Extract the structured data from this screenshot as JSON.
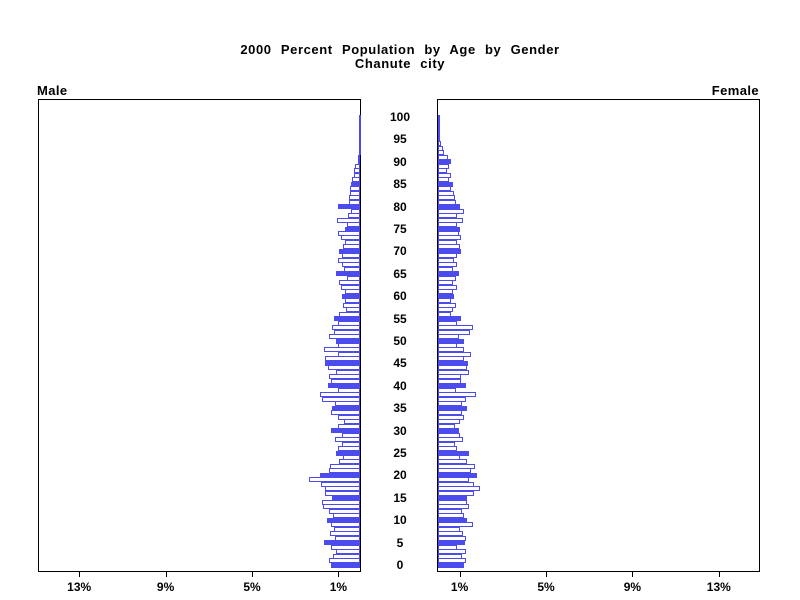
{
  "title": {
    "line1": "2000 Percent Population by Age by Gender",
    "line2": "Chanute city"
  },
  "panels": {
    "left_header": "Male",
    "right_header": "Female"
  },
  "axes": {
    "age_tick_labels": [
      "0",
      "5",
      "10",
      "15",
      "20",
      "25",
      "30",
      "35",
      "40",
      "45",
      "50",
      "55",
      "60",
      "65",
      "70",
      "75",
      "80",
      "85",
      "90",
      "95",
      "100"
    ],
    "pct_tick_labels": [
      "1%",
      "5%",
      "9%",
      "13%"
    ],
    "pct_tick_values": [
      1,
      5,
      9,
      13
    ],
    "pct_axis_range": [
      0,
      15
    ],
    "age_axis_range": [
      0,
      100
    ]
  },
  "colors": {
    "bar_blue": "#4b4bee",
    "bar_outline_fill": "#ffffff",
    "frame": "#000000",
    "text": "#000000",
    "background": "#ffffff"
  },
  "chart_data": {
    "type": "bar",
    "subtype": "population-pyramid",
    "title": "2000 Percent Population by Age by Gender",
    "subtitle": "Chanute city",
    "unit": "percent of total population",
    "orientation": "horizontal-mirrored",
    "x_range_pct": [
      0,
      15
    ],
    "x_tick_labels": [
      "1%",
      "5%",
      "9%",
      "13%"
    ],
    "age_min": 0,
    "age_max": 100,
    "age_step": 1,
    "highlight_rule": "bars for ages divisible by 5 are solid blue; all other bars are white with blue outline",
    "legend_position": "none",
    "grid": false,
    "series": [
      {
        "name": "Male",
        "side": "left",
        "values": [
          1.35,
          1.45,
          1.25,
          1.1,
          1.35,
          1.65,
          1.15,
          1.4,
          1.2,
          1.35,
          1.55,
          1.25,
          1.45,
          1.7,
          1.75,
          1.3,
          1.6,
          1.6,
          1.8,
          2.35,
          1.85,
          1.45,
          1.4,
          0.95,
          0.8,
          1.1,
          1.0,
          0.85,
          1.15,
          0.85,
          1.35,
          1.0,
          0.75,
          1.0,
          1.35,
          1.3,
          1.15,
          1.75,
          1.85,
          1.0,
          1.5,
          1.35,
          1.45,
          1.1,
          1.5,
          1.6,
          1.6,
          1.0,
          1.65,
          1.0,
          1.1,
          1.45,
          1.2,
          1.3,
          1.0,
          1.2,
          0.95,
          0.65,
          0.8,
          0.7,
          0.85,
          0.7,
          0.9,
          0.95,
          0.6,
          1.1,
          0.75,
          0.85,
          1.0,
          0.85,
          0.95,
          0.8,
          0.7,
          0.9,
          1.0,
          0.7,
          0.6,
          1.05,
          0.55,
          0.4,
          1.0,
          0.5,
          0.5,
          0.45,
          0.45,
          0.4,
          0.35,
          0.3,
          0.3,
          0.25,
          0.1,
          0.08,
          0.05,
          0.05,
          0.05,
          0.05,
          0.05,
          0.03,
          0.03,
          0.02,
          0.02
        ]
      },
      {
        "name": "Female",
        "side": "right",
        "values": [
          1.2,
          1.3,
          1.1,
          1.3,
          0.9,
          1.25,
          1.3,
          1.15,
          1.0,
          1.6,
          1.35,
          1.2,
          1.1,
          1.45,
          1.35,
          1.35,
          1.65,
          1.95,
          1.65,
          1.45,
          1.8,
          1.55,
          1.7,
          1.35,
          1.0,
          1.45,
          0.9,
          0.8,
          1.15,
          1.0,
          0.95,
          0.8,
          1.0,
          1.2,
          1.1,
          1.35,
          1.1,
          1.3,
          1.75,
          0.85,
          1.3,
          1.05,
          1.05,
          1.45,
          1.35,
          1.4,
          1.2,
          1.55,
          1.2,
          0.9,
          1.2,
          0.95,
          1.5,
          1.6,
          0.9,
          1.05,
          0.6,
          0.7,
          0.85,
          0.6,
          0.75,
          0.7,
          0.9,
          0.7,
          0.85,
          0.95,
          0.7,
          0.9,
          0.75,
          0.9,
          1.05,
          1.0,
          0.9,
          1.05,
          0.95,
          1.0,
          0.9,
          1.15,
          0.9,
          1.2,
          1.0,
          0.85,
          0.8,
          0.75,
          0.6,
          0.7,
          0.5,
          0.6,
          0.4,
          0.5,
          0.6,
          0.45,
          0.3,
          0.25,
          0.15,
          0.1,
          0.08,
          0.06,
          0.05,
          0.04,
          0.05
        ]
      }
    ]
  }
}
